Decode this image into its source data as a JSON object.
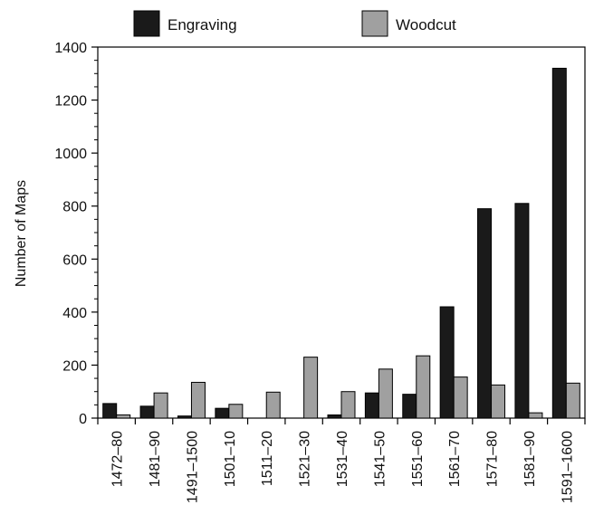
{
  "chart_data": {
    "type": "bar",
    "ylabel": "Number of Maps",
    "ylim": [
      0,
      1400
    ],
    "y_ticks": [
      "0",
      "200",
      "400",
      "600",
      "800",
      "1000",
      "1200",
      "1400"
    ],
    "categories": [
      "1472–80",
      "1481–90",
      "1491–1500",
      "1501–10",
      "1511–20",
      "1521–30",
      "1531–40",
      "1541–50",
      "1551–60",
      "1561–70",
      "1571–80",
      "1581–90",
      "1591–1600"
    ],
    "series": [
      {
        "name": "Engraving",
        "color": "#1a1a1a",
        "values": [
          55,
          45,
          8,
          37,
          0,
          0,
          12,
          95,
          90,
          420,
          790,
          810,
          1320
        ]
      },
      {
        "name": "Woodcut",
        "color": "#a0a0a0",
        "values": [
          12,
          95,
          135,
          52,
          98,
          230,
          100,
          185,
          235,
          155,
          125,
          20,
          132
        ]
      }
    ],
    "legend_position": "top",
    "grid": false
  }
}
